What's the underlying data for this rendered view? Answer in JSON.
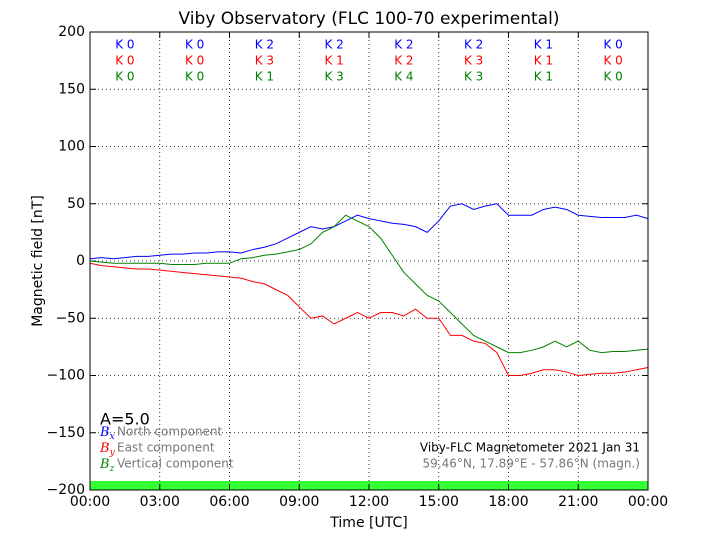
{
  "chart_data": {
    "type": "line",
    "title": "Viby Observatory (FLC 100-70 experimental)",
    "x_label": "Time [UTC]",
    "y_label": "Magnetic field [nT]",
    "xlim": [
      0,
      24
    ],
    "xticks": [
      {
        "value": 0,
        "label": "00:00"
      },
      {
        "value": 3,
        "label": "03:00"
      },
      {
        "value": 6,
        "label": "06:00"
      },
      {
        "value": 9,
        "label": "09:00"
      },
      {
        "value": 12,
        "label": "12:00"
      },
      {
        "value": 15,
        "label": "15:00"
      },
      {
        "value": 18,
        "label": "18:00"
      },
      {
        "value": 21,
        "label": "21:00"
      },
      {
        "value": 24,
        "label": "00:00"
      }
    ],
    "ylim": [
      -200,
      200
    ],
    "yticks": [
      {
        "value": -200,
        "label": "−200"
      },
      {
        "value": -150,
        "label": "−150"
      },
      {
        "value": -100,
        "label": "−100"
      },
      {
        "value": -50,
        "label": "−50"
      },
      0,
      50,
      100,
      150,
      200
    ],
    "grid": true,
    "x": [
      0,
      0.5,
      1,
      1.5,
      2,
      2.5,
      3,
      3.5,
      4,
      4.5,
      5,
      5.5,
      6,
      6.5,
      7,
      7.5,
      8,
      8.5,
      9,
      9.5,
      10,
      10.5,
      11,
      11.5,
      12,
      12.5,
      13,
      13.5,
      14,
      14.5,
      15,
      15.5,
      16,
      16.5,
      17,
      17.5,
      18,
      18.5,
      19,
      19.5,
      20,
      20.5,
      21,
      21.5,
      22,
      22.5,
      23,
      23.5,
      24
    ],
    "series": [
      {
        "name": "North component",
        "symbol": "B",
        "sub": "x",
        "color": "#0000ff",
        "values": [
          2,
          3,
          2,
          3,
          4,
          4,
          5,
          6,
          6,
          7,
          7,
          8,
          8,
          7,
          10,
          12,
          15,
          20,
          25,
          30,
          28,
          30,
          35,
          40,
          37,
          35,
          33,
          32,
          30,
          25,
          35,
          48,
          50,
          45,
          48,
          50,
          40,
          40,
          40,
          45,
          47,
          45,
          40,
          39,
          38,
          38,
          38,
          40,
          37
        ]
      },
      {
        "name": "East component",
        "symbol": "B",
        "sub": "y",
        "color": "#ff0000",
        "values": [
          -2,
          -4,
          -5,
          -6,
          -7,
          -7,
          -8,
          -9,
          -10,
          -11,
          -12,
          -13,
          -14,
          -15,
          -18,
          -20,
          -25,
          -30,
          -40,
          -50,
          -48,
          -55,
          -50,
          -45,
          -50,
          -45,
          -45,
          -48,
          -42,
          -50,
          -50,
          -65,
          -65,
          -70,
          -72,
          -80,
          -100,
          -100,
          -98,
          -95,
          -95,
          -97,
          -100,
          -99,
          -98,
          -98,
          -97,
          -95,
          -93
        ]
      },
      {
        "name": "Vertical component",
        "symbol": "B",
        "sub": "z",
        "color": "#008000",
        "values": [
          0,
          -1,
          -2,
          -2,
          -2,
          -2,
          -2,
          -3,
          -3,
          -3,
          -2,
          -2,
          -2,
          2,
          3,
          5,
          6,
          8,
          10,
          15,
          25,
          30,
          40,
          35,
          30,
          20,
          5,
          -10,
          -20,
          -30,
          -35,
          -45,
          -55,
          -65,
          -70,
          -75,
          -80,
          -80,
          -78,
          -75,
          -70,
          -75,
          -70,
          -78,
          -80,
          -79,
          -79,
          -78,
          -77
        ]
      }
    ],
    "k_index": [
      {
        "color": "#0000ff",
        "labels": [
          "K 0",
          "K 0",
          "K 2",
          "K 2",
          "K 2",
          "K 2",
          "K 1",
          "K 0"
        ]
      },
      {
        "color": "#ff0000",
        "labels": [
          "K 0",
          "K 0",
          "K 3",
          "K 1",
          "K 2",
          "K 3",
          "K 1",
          "K 0"
        ]
      },
      {
        "color": "#008000",
        "labels": [
          "K 0",
          "K 0",
          "K 1",
          "K 3",
          "K 4",
          "K 3",
          "K 1",
          "K 0"
        ]
      }
    ],
    "annotations": [
      "A=5.0",
      "Viby-FLC Magnetometer 2021 Jan 31",
      "59.46°N, 17.89°E - 57.86°N (magn.)"
    ]
  }
}
